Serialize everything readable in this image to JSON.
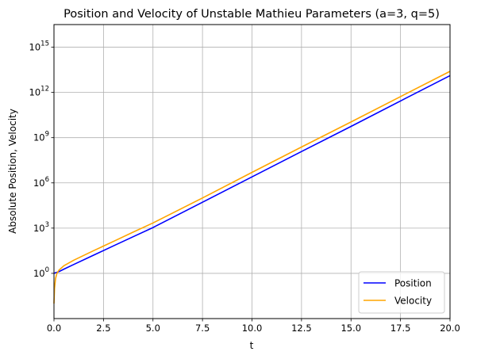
{
  "chart_data": {
    "type": "line",
    "title": "Position and Velocity of Unstable Mathieu Parameters (a=3, q=5)",
    "xlabel": "t",
    "ylabel": "Absolute Position, Velocity",
    "xlim": [
      0,
      20
    ],
    "ylim_log10": [
      -3,
      16.5
    ],
    "yscale": "log",
    "grid": true,
    "legend_position": "lower-right",
    "x_ticks": [
      {
        "value": 0,
        "label": "0.0"
      },
      {
        "value": 2.5,
        "label": "2.5"
      },
      {
        "value": 5,
        "label": "5.0"
      },
      {
        "value": 7.5,
        "label": "7.5"
      },
      {
        "value": 10,
        "label": "10.0"
      },
      {
        "value": 12.5,
        "label": "12.5"
      },
      {
        "value": 15,
        "label": "15.0"
      },
      {
        "value": 17.5,
        "label": "17.5"
      },
      {
        "value": 20,
        "label": "20.0"
      }
    ],
    "y_ticks": [
      {
        "exp": 0,
        "base": "10",
        "label": "0"
      },
      {
        "exp": 3,
        "base": "10",
        "label": "3"
      },
      {
        "exp": 6,
        "base": "10",
        "label": "6"
      },
      {
        "exp": 9,
        "base": "10",
        "label": "9"
      },
      {
        "exp": 12,
        "base": "10",
        "label": "12"
      },
      {
        "exp": 15,
        "base": "10",
        "label": "15"
      }
    ],
    "series": [
      {
        "name": "Position",
        "color": "#0000ff",
        "x": [
          0,
          0.25,
          0.5,
          1,
          2,
          3,
          4,
          5,
          7.5,
          10,
          12.5,
          15,
          17.5,
          20
        ],
        "y": [
          1,
          1.3,
          1.9,
          3.9,
          16,
          66,
          270,
          1100,
          52000,
          2500000,
          120000000,
          5600000000,
          270000000000,
          13000000000000
        ]
      },
      {
        "name": "Velocity",
        "color": "#ffa500",
        "x": [
          0,
          0.03,
          0.08,
          0.15,
          0.25,
          0.5,
          1,
          2,
          3,
          4,
          5,
          7.5,
          10,
          12.5,
          15,
          17.5,
          20
        ],
        "y": [
          0.01,
          0.1,
          0.45,
          1,
          1.6,
          3.2,
          7.5,
          32,
          130,
          540,
          2200,
          100000,
          5000000,
          240000000,
          11000000000,
          530000000000,
          25000000000000
        ]
      }
    ]
  }
}
